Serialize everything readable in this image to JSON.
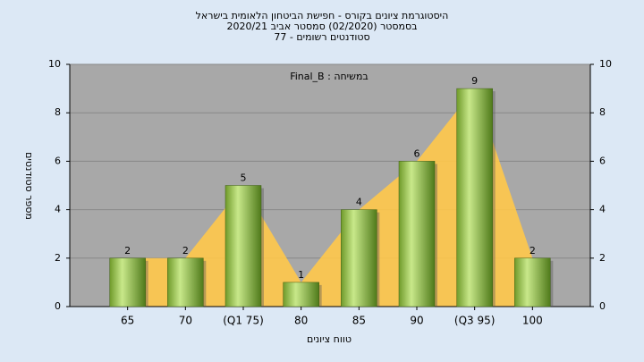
{
  "chart_data": {
    "type": "bar",
    "title": [
      "היסטוגרמת ציונים בקורס - חפישת הביטחון הלאומית בישראל",
      "בסמסטר  (02/2020)  סמסטר אביב 2020/21",
      "סטודנטים רשומים - 77"
    ],
    "annotation": "Final_B : במשיחה",
    "x_label": "טווח ציונים",
    "y_label": "מספר סטודנטים",
    "categories": [
      "65",
      "70",
      "(Q1 75)",
      "80",
      "85",
      "90",
      "(Q3 95)",
      "100"
    ],
    "values": [
      2,
      2,
      5,
      1,
      4,
      6,
      9,
      2
    ],
    "color": "#8fbf3f",
    "area_color": "#ffc84a",
    "ylim": [
      0,
      10
    ],
    "yticks": [
      0,
      2,
      4,
      6,
      8,
      10
    ],
    "grid": true
  }
}
